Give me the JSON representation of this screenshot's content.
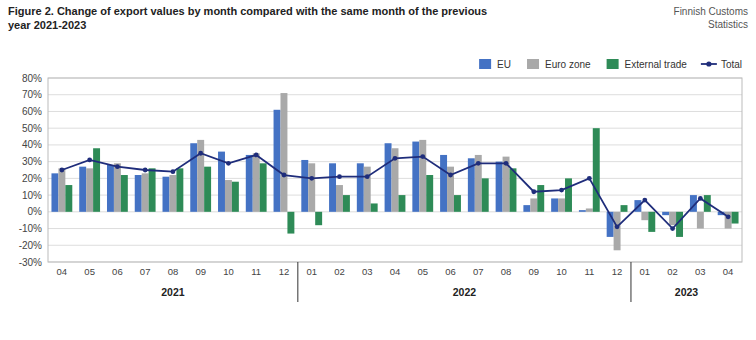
{
  "chart_data": {
    "type": "bar",
    "title": "Figure 2. Change of export values by month compared with the same month of the previous\nyear 2021-2023",
    "subtitle": "Finnish Customs\nStatistics",
    "categories": [
      "04",
      "05",
      "06",
      "07",
      "08",
      "09",
      "10",
      "11",
      "12",
      "01",
      "02",
      "03",
      "04",
      "05",
      "06",
      "07",
      "08",
      "09",
      "10",
      "11",
      "12",
      "01",
      "02",
      "03",
      "04"
    ],
    "annotations": [
      "2021",
      "2022",
      "2023"
    ],
    "series": [
      {
        "name": "EU",
        "type": "bar",
        "color": "#4472C4",
        "values": [
          23,
          27,
          28,
          22,
          21,
          41,
          36,
          34,
          61,
          31,
          29,
          29,
          41,
          42,
          34,
          32,
          30,
          4,
          8,
          1,
          -15,
          7,
          -2,
          10,
          -2
        ]
      },
      {
        "name": "Euro zone",
        "type": "bar",
        "color": "#A9A9A9",
        "values": [
          26,
          26,
          29,
          23,
          22,
          43,
          19,
          35,
          71,
          29,
          16,
          27,
          38,
          43,
          27,
          34,
          33,
          8,
          8,
          2,
          -23,
          -5,
          -8,
          -10,
          -10
        ]
      },
      {
        "name": "External trade",
        "type": "bar",
        "color": "#2E8B57",
        "values": [
          16,
          38,
          22,
          26,
          26,
          27,
          18,
          29,
          -13,
          -8,
          10,
          5,
          10,
          22,
          10,
          20,
          26,
          16,
          20,
          50,
          4,
          -12,
          -15,
          10,
          -7
        ]
      },
      {
        "name": "Total",
        "type": "line",
        "marker": "circle",
        "color": "#1F2D7B",
        "values": [
          25,
          31,
          27,
          25,
          24,
          35,
          29,
          34,
          22,
          20,
          21,
          21,
          32,
          33,
          22,
          29,
          29,
          12,
          13,
          20,
          -9,
          7,
          -10,
          8,
          -3
        ]
      }
    ],
    "ylim": [
      -30,
      80
    ],
    "yticks": [
      {
        "value": -30,
        "label": "-30%"
      },
      {
        "value": -20,
        "label": "-20%"
      },
      {
        "value": -10,
        "label": "-10%"
      },
      {
        "value": 0,
        "label": "0%"
      },
      {
        "value": 10,
        "label": "10%"
      },
      {
        "value": 20,
        "label": "20%"
      },
      {
        "value": 30,
        "label": "30%"
      },
      {
        "value": 40,
        "label": "40%"
      },
      {
        "value": 50,
        "label": "50%"
      },
      {
        "value": 60,
        "label": "60%"
      },
      {
        "value": 70,
        "label": "70%"
      },
      {
        "value": 80,
        "label": "80%"
      }
    ],
    "grid": true,
    "legend": "upper right"
  }
}
